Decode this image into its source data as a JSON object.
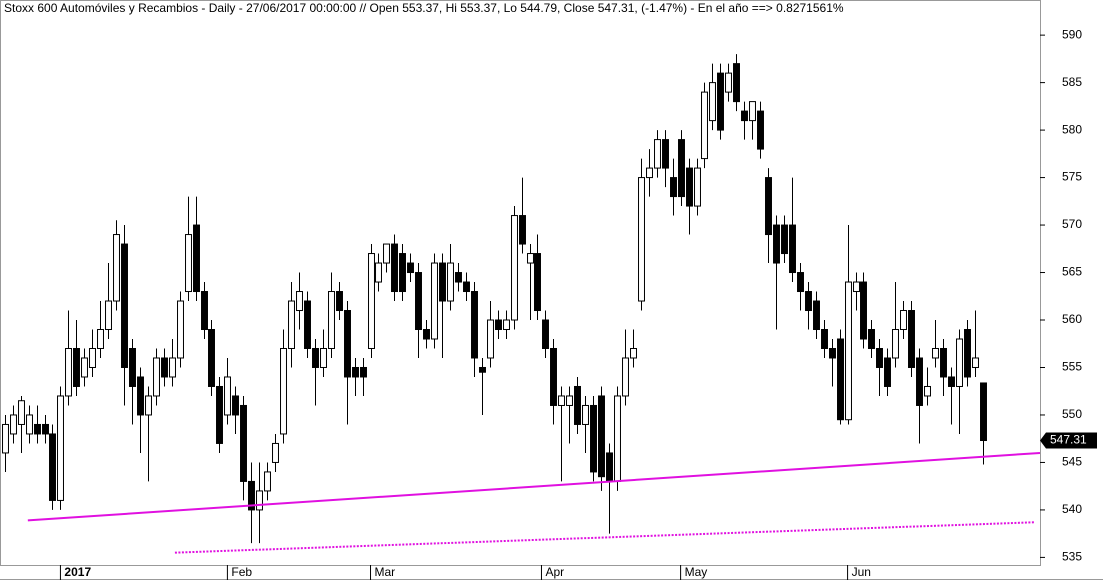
{
  "chart_data": {
    "type": "candlestick",
    "title": "Stoxx 600 Automóviles y Recambios - Daily - 27/06/2017 00:00:00 // Open 553.37, Hi 553.37, Lo 544.79, Close 547.31, (-1.47%) - En el año ==> 0.8271561%",
    "open": [
      546,
      548,
      549,
      548,
      549,
      549,
      548,
      541,
      552,
      557,
      554,
      555,
      557,
      559,
      562,
      568,
      557,
      554,
      550,
      552,
      556,
      554,
      556,
      563,
      570,
      563,
      559,
      553,
      550,
      552,
      551,
      543,
      540,
      542,
      545,
      548,
      557,
      561,
      562,
      557,
      555,
      557,
      563,
      561,
      555,
      555,
      557,
      564,
      566,
      568,
      567,
      566,
      565,
      559,
      558,
      566,
      562,
      565,
      564,
      563,
      555,
      556,
      560,
      559,
      560,
      571,
      566,
      567,
      560,
      557,
      551,
      551,
      553,
      549,
      551,
      552,
      546,
      543,
      552,
      556,
      562,
      575,
      576,
      579,
      575,
      579,
      576,
      572,
      577,
      581,
      586,
      584,
      587,
      582,
      581,
      582,
      575,
      570,
      570,
      570,
      565,
      563,
      562,
      559,
      557,
      558,
      549.5,
      563,
      564,
      559,
      557,
      556,
      556,
      559,
      561,
      556,
      552,
      556,
      557,
      554,
      553,
      559,
      555,
      553.37
    ],
    "high": [
      550,
      551,
      552,
      551,
      551,
      550,
      549,
      553,
      561,
      560,
      557,
      559,
      562,
      566,
      570.5,
      570,
      558,
      555,
      553,
      557,
      557,
      558,
      563,
      573,
      573,
      564,
      560,
      554,
      556,
      553,
      552,
      545,
      545,
      545,
      548,
      559,
      564,
      565,
      563,
      558,
      559,
      565,
      564,
      562,
      556,
      556,
      568,
      567,
      568,
      569,
      568,
      567,
      566,
      560,
      567,
      567,
      568,
      566,
      565,
      564,
      556,
      562,
      561,
      561,
      572,
      575,
      568,
      569,
      561,
      558,
      553,
      553,
      554,
      552,
      552,
      553,
      547,
      553,
      559,
      559,
      577,
      578,
      580,
      580,
      577,
      580,
      577,
      577,
      585,
      587,
      587,
      587,
      588,
      583,
      583,
      583,
      576,
      571,
      571,
      575,
      566,
      564,
      563,
      560,
      558,
      559,
      570,
      565,
      565,
      560,
      558,
      557,
      564,
      562,
      562,
      557,
      555,
      560,
      558,
      555,
      559,
      560,
      561,
      553.37
    ],
    "low": [
      544,
      547,
      546,
      547,
      547,
      547,
      540,
      540,
      551,
      552,
      553,
      554,
      556,
      558,
      561,
      551,
      549,
      546,
      543,
      551,
      553,
      553,
      555,
      562,
      562,
      558,
      552,
      546,
      549,
      548,
      541,
      536.5,
      536.5,
      541,
      544,
      547,
      555,
      559,
      556,
      551,
      554,
      556,
      560,
      549,
      552,
      552,
      556,
      563,
      565,
      562,
      562,
      564,
      556,
      557,
      557,
      556,
      561,
      563,
      562,
      554,
      550,
      555,
      558,
      558,
      559,
      567,
      560,
      560,
      556,
      549,
      543,
      547,
      548,
      546,
      543,
      542,
      537.5,
      542,
      551,
      555,
      561,
      573,
      575,
      574,
      571,
      572,
      569,
      571,
      576,
      580,
      579,
      583,
      582,
      579,
      579,
      577,
      566,
      559,
      566,
      564,
      561,
      559,
      558,
      556,
      553,
      549,
      549,
      561,
      557,
      556,
      552,
      552,
      555,
      558,
      554,
      547,
      551,
      555,
      552,
      549,
      548,
      553,
      554,
      544.79
    ],
    "close": [
      549,
      550,
      551.5,
      550,
      548,
      548,
      541,
      552,
      557,
      553,
      556,
      557,
      559,
      562,
      569,
      555,
      553,
      550,
      552,
      556,
      554,
      556,
      562,
      569,
      563,
      559,
      553,
      547,
      554,
      550,
      543,
      540,
      542,
      544,
      547,
      557,
      562,
      563,
      557,
      555,
      557,
      563,
      561,
      554,
      554,
      554,
      567,
      566,
      568,
      563,
      563,
      565,
      559,
      558,
      566,
      562,
      566,
      564,
      563,
      556,
      554.5,
      560,
      559,
      560,
      571,
      568,
      567,
      561,
      557,
      551,
      552,
      552,
      549,
      551,
      544,
      543.5,
      543,
      552,
      556,
      557,
      575,
      576,
      579,
      576,
      573,
      573,
      572,
      576,
      584,
      585,
      580,
      586,
      583,
      581,
      583,
      578,
      569,
      566,
      567,
      565,
      563,
      561,
      559,
      557,
      556,
      549.5,
      564,
      564,
      558,
      557,
      555,
      553,
      559,
      561,
      555,
      551,
      553,
      557,
      554,
      553,
      558,
      554,
      556,
      547.31
    ],
    "up_color": "#ffffff",
    "down_color": "#000000",
    "edge_color": "#000000",
    "xlim": [
      -0.6,
      130.2
    ],
    "xticks": [
      {
        "value": 7,
        "label": "2017"
      },
      {
        "value": 28,
        "label": "Feb"
      },
      {
        "value": 46,
        "label": "Mar"
      },
      {
        "value": 67.5,
        "label": "Apr"
      },
      {
        "value": 85,
        "label": "May"
      },
      {
        "value": 106,
        "label": "Jun"
      }
    ],
    "ylim": [
      534.2,
      593.7
    ],
    "yticks": [
      535,
      540,
      545,
      550,
      555,
      560,
      565,
      570,
      575,
      580,
      585,
      590
    ],
    "last_price": 547.31,
    "trendlines": [
      {
        "color": "#e010e0",
        "style": "solid",
        "x": [
          2.9,
          130.2
        ],
        "y": [
          538.9,
          546.0
        ]
      },
      {
        "color": "#e010e0",
        "style": "dotted",
        "x": [
          21.4,
          129.5
        ],
        "y": [
          535.5,
          538.7
        ]
      }
    ]
  }
}
